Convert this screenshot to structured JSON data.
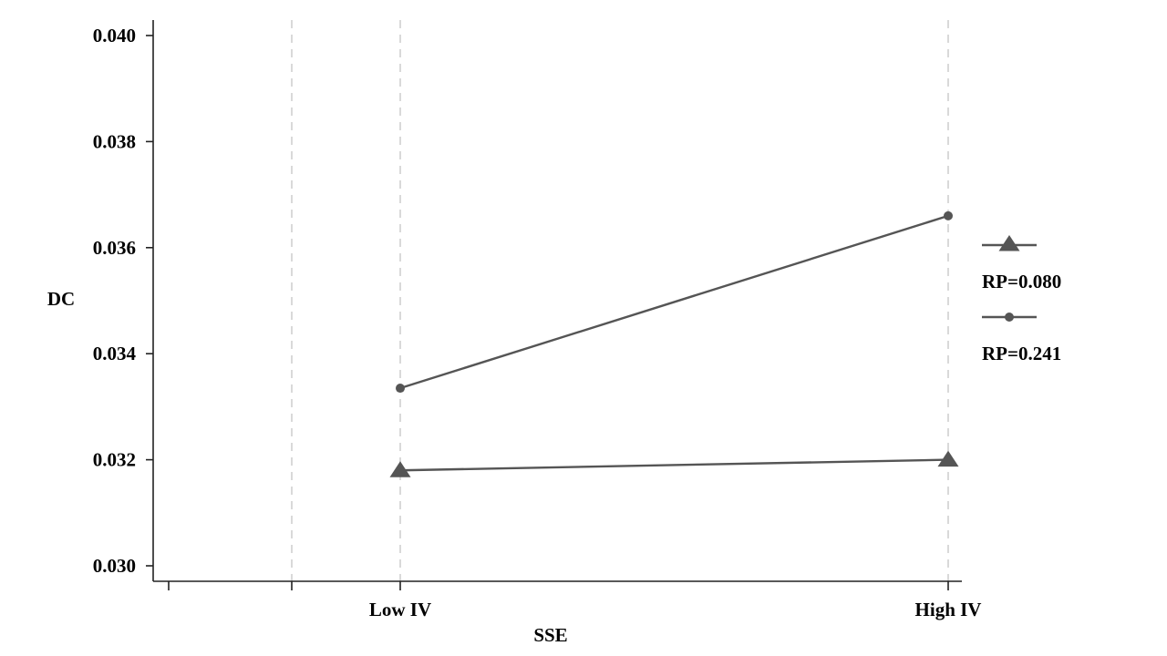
{
  "chart_data": {
    "type": "line",
    "title": "",
    "xlabel": "SSE",
    "ylabel": "DC",
    "categories": [
      "Low IV",
      "High IV"
    ],
    "ylim": [
      0.03,
      0.04
    ],
    "yticks": [
      "0.030",
      "0.032",
      "0.034",
      "0.036",
      "0.038",
      "0.040"
    ],
    "grid": "vertical dashed",
    "legend_position": "right",
    "colors": {
      "line": "#555555",
      "grid": "#d9d9d9",
      "axis": "#222222"
    },
    "series": [
      {
        "name": "RP=0.080",
        "marker": "triangle",
        "values": [
          0.0318,
          0.032
        ]
      },
      {
        "name": "RP=0.241",
        "marker": "circle",
        "values": [
          0.03335,
          0.0366
        ]
      }
    ]
  }
}
